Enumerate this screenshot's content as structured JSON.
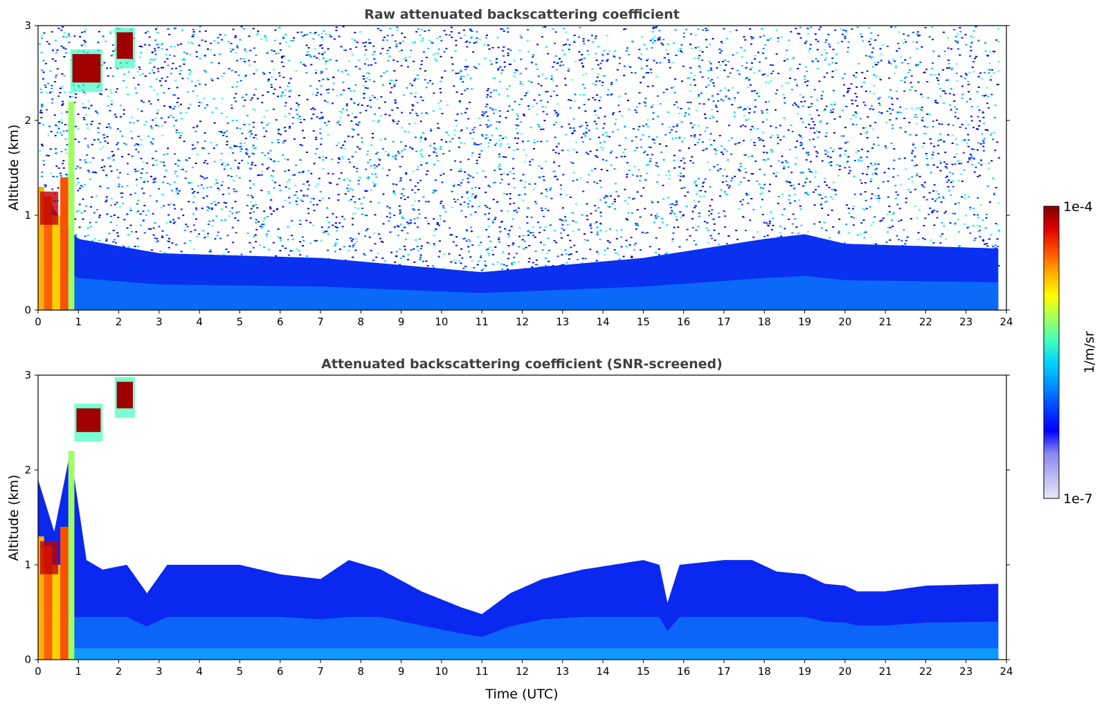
{
  "chart_data": [
    {
      "type": "heatmap",
      "title": "Raw attenuated backscattering coefficient",
      "xlabel": "",
      "ylabel": "Altitude (km)",
      "xlim": [
        0,
        24
      ],
      "ylim": [
        0,
        3
      ],
      "x_ticks": [
        "0",
        "1",
        "2",
        "3",
        "4",
        "5",
        "6",
        "7",
        "8",
        "9",
        "10",
        "11",
        "12",
        "13",
        "14",
        "15",
        "16",
        "17",
        "18",
        "19",
        "20",
        "21",
        "22",
        "23",
        "24"
      ],
      "y_ticks": [
        "0",
        "1",
        "2",
        "3"
      ],
      "data_end_time": 23.8,
      "cloud_segments": [
        {
          "t0": 0.8,
          "t1": 1.6,
          "base_km": 2.3,
          "top_km": 2.75
        },
        {
          "t0": 1.9,
          "t1": 2.4,
          "base_km": 2.55,
          "top_km": 2.98
        }
      ],
      "aerosol_layer_top_km": [
        {
          "t": 0,
          "top": 1.3
        },
        {
          "t": 0.5,
          "top": 1.0
        },
        {
          "t": 1,
          "top": 0.75
        },
        {
          "t": 3,
          "top": 0.6
        },
        {
          "t": 7,
          "top": 0.55
        },
        {
          "t": 11,
          "top": 0.4
        },
        {
          "t": 15,
          "top": 0.55
        },
        {
          "t": 18,
          "top": 0.75
        },
        {
          "t": 19,
          "top": 0.8
        },
        {
          "t": 20,
          "top": 0.7
        },
        {
          "t": 23.8,
          "top": 0.65
        }
      ],
      "background": "noisy signal above boundary layer"
    },
    {
      "type": "heatmap",
      "title": "Attenuated backscattering coefficient (SNR-screened)",
      "xlabel": "Time (UTC)",
      "ylabel": "Altitude (km)",
      "xlim": [
        0,
        24
      ],
      "ylim": [
        0,
        3
      ],
      "x_ticks": [
        "0",
        "1",
        "2",
        "3",
        "4",
        "5",
        "6",
        "7",
        "8",
        "9",
        "10",
        "11",
        "12",
        "13",
        "14",
        "15",
        "16",
        "17",
        "18",
        "19",
        "20",
        "21",
        "22",
        "23",
        "24"
      ],
      "y_ticks": [
        "0",
        "1",
        "2",
        "3"
      ],
      "data_end_time": 23.8,
      "boundary_layer_top_km": [
        {
          "t": 0,
          "top": 1.9
        },
        {
          "t": 0.4,
          "top": 1.35
        },
        {
          "t": 0.8,
          "top": 2.2
        },
        {
          "t": 1.2,
          "top": 1.05
        },
        {
          "t": 1.6,
          "top": 0.95
        },
        {
          "t": 2.2,
          "top": 1.0
        },
        {
          "t": 2.7,
          "top": 0.7
        },
        {
          "t": 3.2,
          "top": 1.0
        },
        {
          "t": 5,
          "top": 1.0
        },
        {
          "t": 6,
          "top": 0.9
        },
        {
          "t": 7,
          "top": 0.85
        },
        {
          "t": 7.7,
          "top": 1.05
        },
        {
          "t": 8.5,
          "top": 0.95
        },
        {
          "t": 9.5,
          "top": 0.72
        },
        {
          "t": 10.5,
          "top": 0.55
        },
        {
          "t": 11,
          "top": 0.48
        },
        {
          "t": 11.7,
          "top": 0.7
        },
        {
          "t": 12.5,
          "top": 0.85
        },
        {
          "t": 13.5,
          "top": 0.95
        },
        {
          "t": 15,
          "top": 1.05
        },
        {
          "t": 15.4,
          "top": 1.0
        },
        {
          "t": 15.6,
          "top": 0.6
        },
        {
          "t": 15.9,
          "top": 1.0
        },
        {
          "t": 17,
          "top": 1.05
        },
        {
          "t": 17.7,
          "top": 1.05
        },
        {
          "t": 18.3,
          "top": 0.93
        },
        {
          "t": 19,
          "top": 0.9
        },
        {
          "t": 19.5,
          "top": 0.8
        },
        {
          "t": 20,
          "top": 0.78
        },
        {
          "t": 20.3,
          "top": 0.72
        },
        {
          "t": 21,
          "top": 0.72
        },
        {
          "t": 22,
          "top": 0.78
        },
        {
          "t": 23.8,
          "top": 0.8
        }
      ],
      "cloud_segments": [
        {
          "t0": 0.9,
          "t1": 1.6,
          "base_km": 2.3,
          "top_km": 2.7
        },
        {
          "t0": 1.9,
          "t1": 2.4,
          "base_km": 2.55,
          "top_km": 2.98
        }
      ]
    }
  ],
  "colorbar": {
    "label": "1/m/sr",
    "max_label": "1e-4",
    "min_label": "1e-7",
    "colors": [
      "#e8e8f8",
      "#b8b8f0",
      "#8888f0",
      "#0000ff",
      "#0040ff",
      "#0090ff",
      "#00d0ff",
      "#40ffc0",
      "#a0ff60",
      "#ffff00",
      "#ffb000",
      "#ff5000",
      "#e00000",
      "#800000"
    ]
  }
}
